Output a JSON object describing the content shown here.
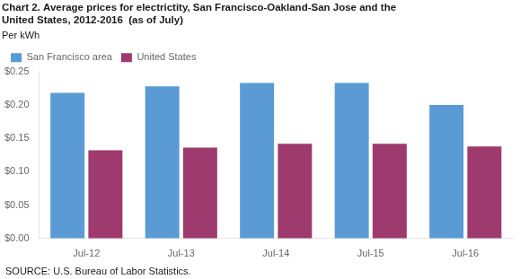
{
  "chart_data": {
    "type": "bar",
    "title": [
      "Chart 2. Average prices for electrictity, San Francisco-Oakland-San Jose and the",
      "United States, 2012-2016  (as of July)"
    ],
    "ylabel": "Per kWh",
    "source": "SOURCE: U.S. Bureau of Labor Statistics.",
    "categories": [
      "Jul-12",
      "Jul-13",
      "Jul-14",
      "Jul-15",
      "Jul-16"
    ],
    "series": [
      {
        "name": "San Francisco area",
        "color": "#5B9BD5",
        "values": [
          0.218,
          0.228,
          0.233,
          0.233,
          0.2
        ]
      },
      {
        "name": "United States",
        "color": "#9E3A6E",
        "values": [
          0.132,
          0.136,
          0.142,
          0.142,
          0.138
        ]
      }
    ],
    "ylim": [
      0,
      0.25
    ],
    "yticks": [
      {
        "value": 0.0,
        "label": "$0.00"
      },
      {
        "value": 0.05,
        "label": "$0.05"
      },
      {
        "value": 0.1,
        "label": "$0.10"
      },
      {
        "value": 0.15,
        "label": "$0.15"
      },
      {
        "value": 0.2,
        "label": "$0.20"
      },
      {
        "value": 0.25,
        "label": "$0.25"
      }
    ],
    "grid": false,
    "legend": "upper left"
  }
}
